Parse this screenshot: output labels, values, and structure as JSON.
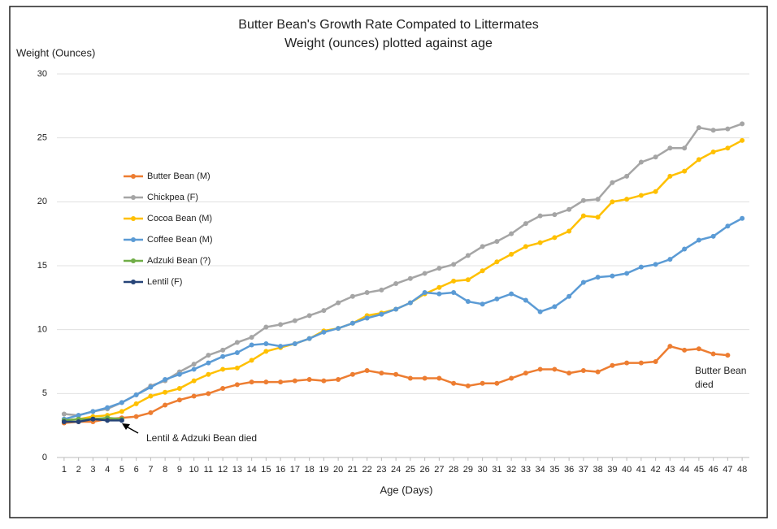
{
  "chart_data": {
    "type": "line",
    "title": "Butter Bean's Growth Rate Compated to Littermates",
    "subtitle": "Weight (ounces) plotted against age",
    "y_label": "Weight (Ounces)",
    "x_label": "Age (Days)",
    "x": [
      1,
      2,
      3,
      4,
      5,
      6,
      7,
      8,
      9,
      10,
      11,
      12,
      13,
      14,
      15,
      16,
      17,
      18,
      19,
      20,
      21,
      22,
      23,
      24,
      25,
      26,
      27,
      28,
      29,
      30,
      31,
      32,
      33,
      34,
      35,
      36,
      37,
      38,
      39,
      40,
      41,
      42,
      43,
      44,
      45,
      46,
      47,
      48
    ],
    "xlim": [
      0.5,
      48.5
    ],
    "xticks": [
      1,
      2,
      3,
      4,
      5,
      6,
      7,
      8,
      9,
      10,
      11,
      12,
      13,
      14,
      15,
      16,
      17,
      18,
      19,
      20,
      21,
      22,
      23,
      24,
      25,
      26,
      27,
      28,
      29,
      30,
      31,
      32,
      33,
      34,
      35,
      36,
      37,
      38,
      39,
      40,
      41,
      42,
      43,
      44,
      45,
      46,
      47,
      48
    ],
    "ylim": [
      0,
      30
    ],
    "yticks": [
      0,
      5,
      10,
      15,
      20,
      25,
      30
    ],
    "grid": true,
    "legend": "left",
    "series": [
      {
        "name": "Butter Bean (M)",
        "color": "#ed7d31",
        "values": [
          2.7,
          2.8,
          2.8,
          3.0,
          3.1,
          3.2,
          3.5,
          4.1,
          4.5,
          4.8,
          5.0,
          5.4,
          5.7,
          5.9,
          5.9,
          5.9,
          6.0,
          6.1,
          6.0,
          6.1,
          6.5,
          6.8,
          6.6,
          6.5,
          6.2,
          6.2,
          6.2,
          5.8,
          5.6,
          5.8,
          5.8,
          6.2,
          6.6,
          6.9,
          6.9,
          6.6,
          6.8,
          6.7,
          7.2,
          7.4,
          7.4,
          7.5,
          8.7,
          8.4,
          8.5,
          8.1,
          8.0,
          null
        ]
      },
      {
        "name": "Chickpea (F)",
        "color": "#a5a5a5",
        "values": [
          3.4,
          3.3,
          3.6,
          3.8,
          4.3,
          4.9,
          5.6,
          6.0,
          6.7,
          7.3,
          8.0,
          8.4,
          9.0,
          9.4,
          10.2,
          10.4,
          10.7,
          11.1,
          11.5,
          12.1,
          12.6,
          12.9,
          13.1,
          13.6,
          14.0,
          14.4,
          14.8,
          15.1,
          15.8,
          16.5,
          16.9,
          17.5,
          18.3,
          18.9,
          19.0,
          19.4,
          20.1,
          20.2,
          21.5,
          22.0,
          23.1,
          23.5,
          24.2,
          24.2,
          25.8,
          25.6,
          25.7,
          26.1
        ]
      },
      {
        "name": "Cocoa Bean (M)",
        "color": "#ffc000",
        "values": [
          2.9,
          3.0,
          3.2,
          3.3,
          3.6,
          4.2,
          4.8,
          5.1,
          5.4,
          6.0,
          6.5,
          6.9,
          7.0,
          7.6,
          8.3,
          8.6,
          8.9,
          9.3,
          9.9,
          10.1,
          10.5,
          11.1,
          11.3,
          11.6,
          12.1,
          12.8,
          13.3,
          13.8,
          13.9,
          14.6,
          15.3,
          15.9,
          16.5,
          16.8,
          17.2,
          17.7,
          18.9,
          18.8,
          20.0,
          20.2,
          20.5,
          20.8,
          22.0,
          22.4,
          23.3,
          23.9,
          24.2,
          24.8
        ]
      },
      {
        "name": "Coffee Bean (M)",
        "color": "#5b9bd5",
        "values": [
          3.0,
          3.3,
          3.6,
          3.9,
          4.3,
          4.9,
          5.5,
          6.1,
          6.5,
          6.9,
          7.4,
          7.9,
          8.2,
          8.8,
          8.9,
          8.7,
          8.9,
          9.3,
          9.8,
          10.1,
          10.5,
          10.9,
          11.2,
          11.6,
          12.1,
          12.9,
          12.8,
          12.9,
          12.2,
          12.0,
          12.4,
          12.8,
          12.3,
          11.4,
          11.8,
          12.6,
          13.7,
          14.1,
          14.2,
          14.4,
          14.9,
          15.1,
          15.5,
          16.3,
          17.0,
          17.3,
          18.1,
          18.7
        ]
      },
      {
        "name": "Adzuki Bean (?)",
        "color": "#70ad47",
        "values": [
          2.9,
          3.0,
          3.0,
          3.1,
          3.0,
          null,
          null,
          null,
          null,
          null,
          null,
          null,
          null,
          null,
          null,
          null,
          null,
          null,
          null,
          null,
          null,
          null,
          null,
          null,
          null,
          null,
          null,
          null,
          null,
          null,
          null,
          null,
          null,
          null,
          null,
          null,
          null,
          null,
          null,
          null,
          null,
          null,
          null,
          null,
          null,
          null,
          null,
          null
        ]
      },
      {
        "name": "Lentil (F)",
        "color": "#264478",
        "values": [
          2.8,
          2.8,
          3.0,
          2.9,
          2.9,
          null,
          null,
          null,
          null,
          null,
          null,
          null,
          null,
          null,
          null,
          null,
          null,
          null,
          null,
          null,
          null,
          null,
          null,
          null,
          null,
          null,
          null,
          null,
          null,
          null,
          null,
          null,
          null,
          null,
          null,
          null,
          null,
          null,
          null,
          null,
          null,
          null,
          null,
          null,
          null,
          null,
          null,
          null
        ]
      }
    ],
    "annotations": [
      "Lentil & Adzuki Bean died",
      "Butter Bean",
      "died"
    ]
  }
}
